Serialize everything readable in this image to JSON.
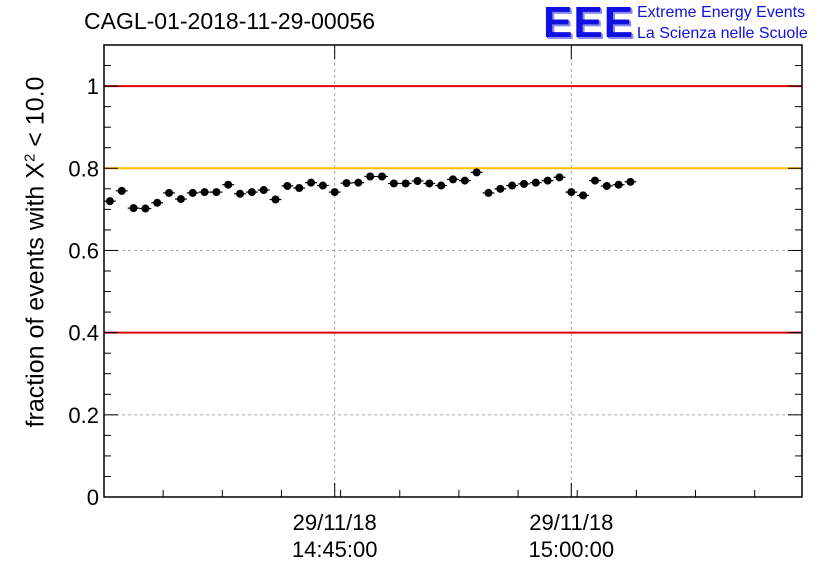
{
  "header": {
    "run_title": "CAGL-01-2018-11-29-00056",
    "logo_text": "EEE",
    "logo_line1": "Extreme Energy Events",
    "logo_line2": "La Scienza nelle Scuole"
  },
  "chart_data": {
    "type": "scatter",
    "title": "CAGL-01-2018-11-29-00056",
    "ylabel_prefix": "fraction of events with X",
    "ylabel_sup": "2",
    "ylabel_suffix": " < 10.0",
    "xlabel": "",
    "ylim": [
      0,
      1.1
    ],
    "yticks": [
      0,
      0.2,
      0.4,
      0.6,
      0.8,
      1
    ],
    "ytick_labels": [
      "0",
      "0.2",
      "0.4",
      "0.6",
      "0.8",
      "1"
    ],
    "xticks": [
      {
        "date": "29/11/18",
        "time": "14:45:00",
        "index": 19.5
      },
      {
        "date": "29/11/18",
        "time": "15:00:00",
        "index": 39.5
      }
    ],
    "grid": true,
    "reference_lines": [
      {
        "y": 1.0,
        "color": "#e00000"
      },
      {
        "y": 0.8,
        "color": "#ffc000"
      },
      {
        "y": 0.4,
        "color": "#e00000"
      }
    ],
    "bins": 59,
    "values": [
      0.72,
      0.745,
      0.703,
      0.702,
      0.716,
      0.74,
      0.725,
      0.74,
      0.742,
      0.742,
      0.76,
      0.738,
      0.742,
      0.747,
      0.724,
      0.757,
      0.752,
      0.765,
      0.758,
      0.742,
      0.764,
      0.765,
      0.78,
      0.78,
      0.763,
      0.763,
      0.769,
      0.763,
      0.758,
      0.773,
      0.77,
      0.79,
      0.74,
      0.75,
      0.758,
      0.762,
      0.765,
      0.77,
      0.778,
      0.742,
      0.734,
      0.77,
      0.757,
      0.76,
      0.767
    ],
    "errors": 0.008
  }
}
